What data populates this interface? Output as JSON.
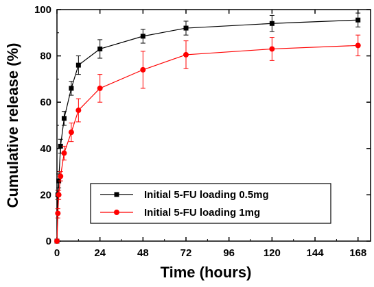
{
  "chart_data": {
    "type": "line",
    "xlabel": "Time (hours)",
    "ylabel": "Cumulative release (%)",
    "xlim": [
      0,
      175
    ],
    "ylim": [
      0,
      100
    ],
    "xticks": [
      0,
      24,
      48,
      72,
      96,
      120,
      144,
      168
    ],
    "yticks": [
      0,
      20,
      40,
      60,
      80,
      100
    ],
    "grid": false,
    "legend_position": "bottom-center",
    "series": [
      {
        "name": "Initial 5-FU loading 0.5mg",
        "color": "#000000",
        "marker": "square",
        "x": [
          0,
          0.5,
          1,
          2,
          4,
          8,
          12,
          24,
          48,
          72,
          120,
          168
        ],
        "y": [
          0,
          20,
          26,
          41,
          53,
          66,
          76,
          83,
          88.5,
          92,
          94,
          95.5
        ],
        "error": [
          0,
          2,
          3,
          3,
          3,
          3,
          4,
          4,
          3,
          3,
          3.5,
          3
        ]
      },
      {
        "name": "Initial 5-FU loading 1mg",
        "color": "#ff0000",
        "marker": "circle",
        "x": [
          0,
          0.5,
          1,
          2,
          4,
          8,
          12,
          24,
          48,
          72,
          120,
          168
        ],
        "y": [
          0,
          12,
          20,
          28,
          38,
          47,
          56.5,
          66,
          74,
          80.5,
          83,
          84.5
        ],
        "error": [
          0,
          2,
          2,
          2,
          3,
          4,
          5,
          6,
          8,
          6,
          5,
          4.5
        ]
      }
    ]
  }
}
